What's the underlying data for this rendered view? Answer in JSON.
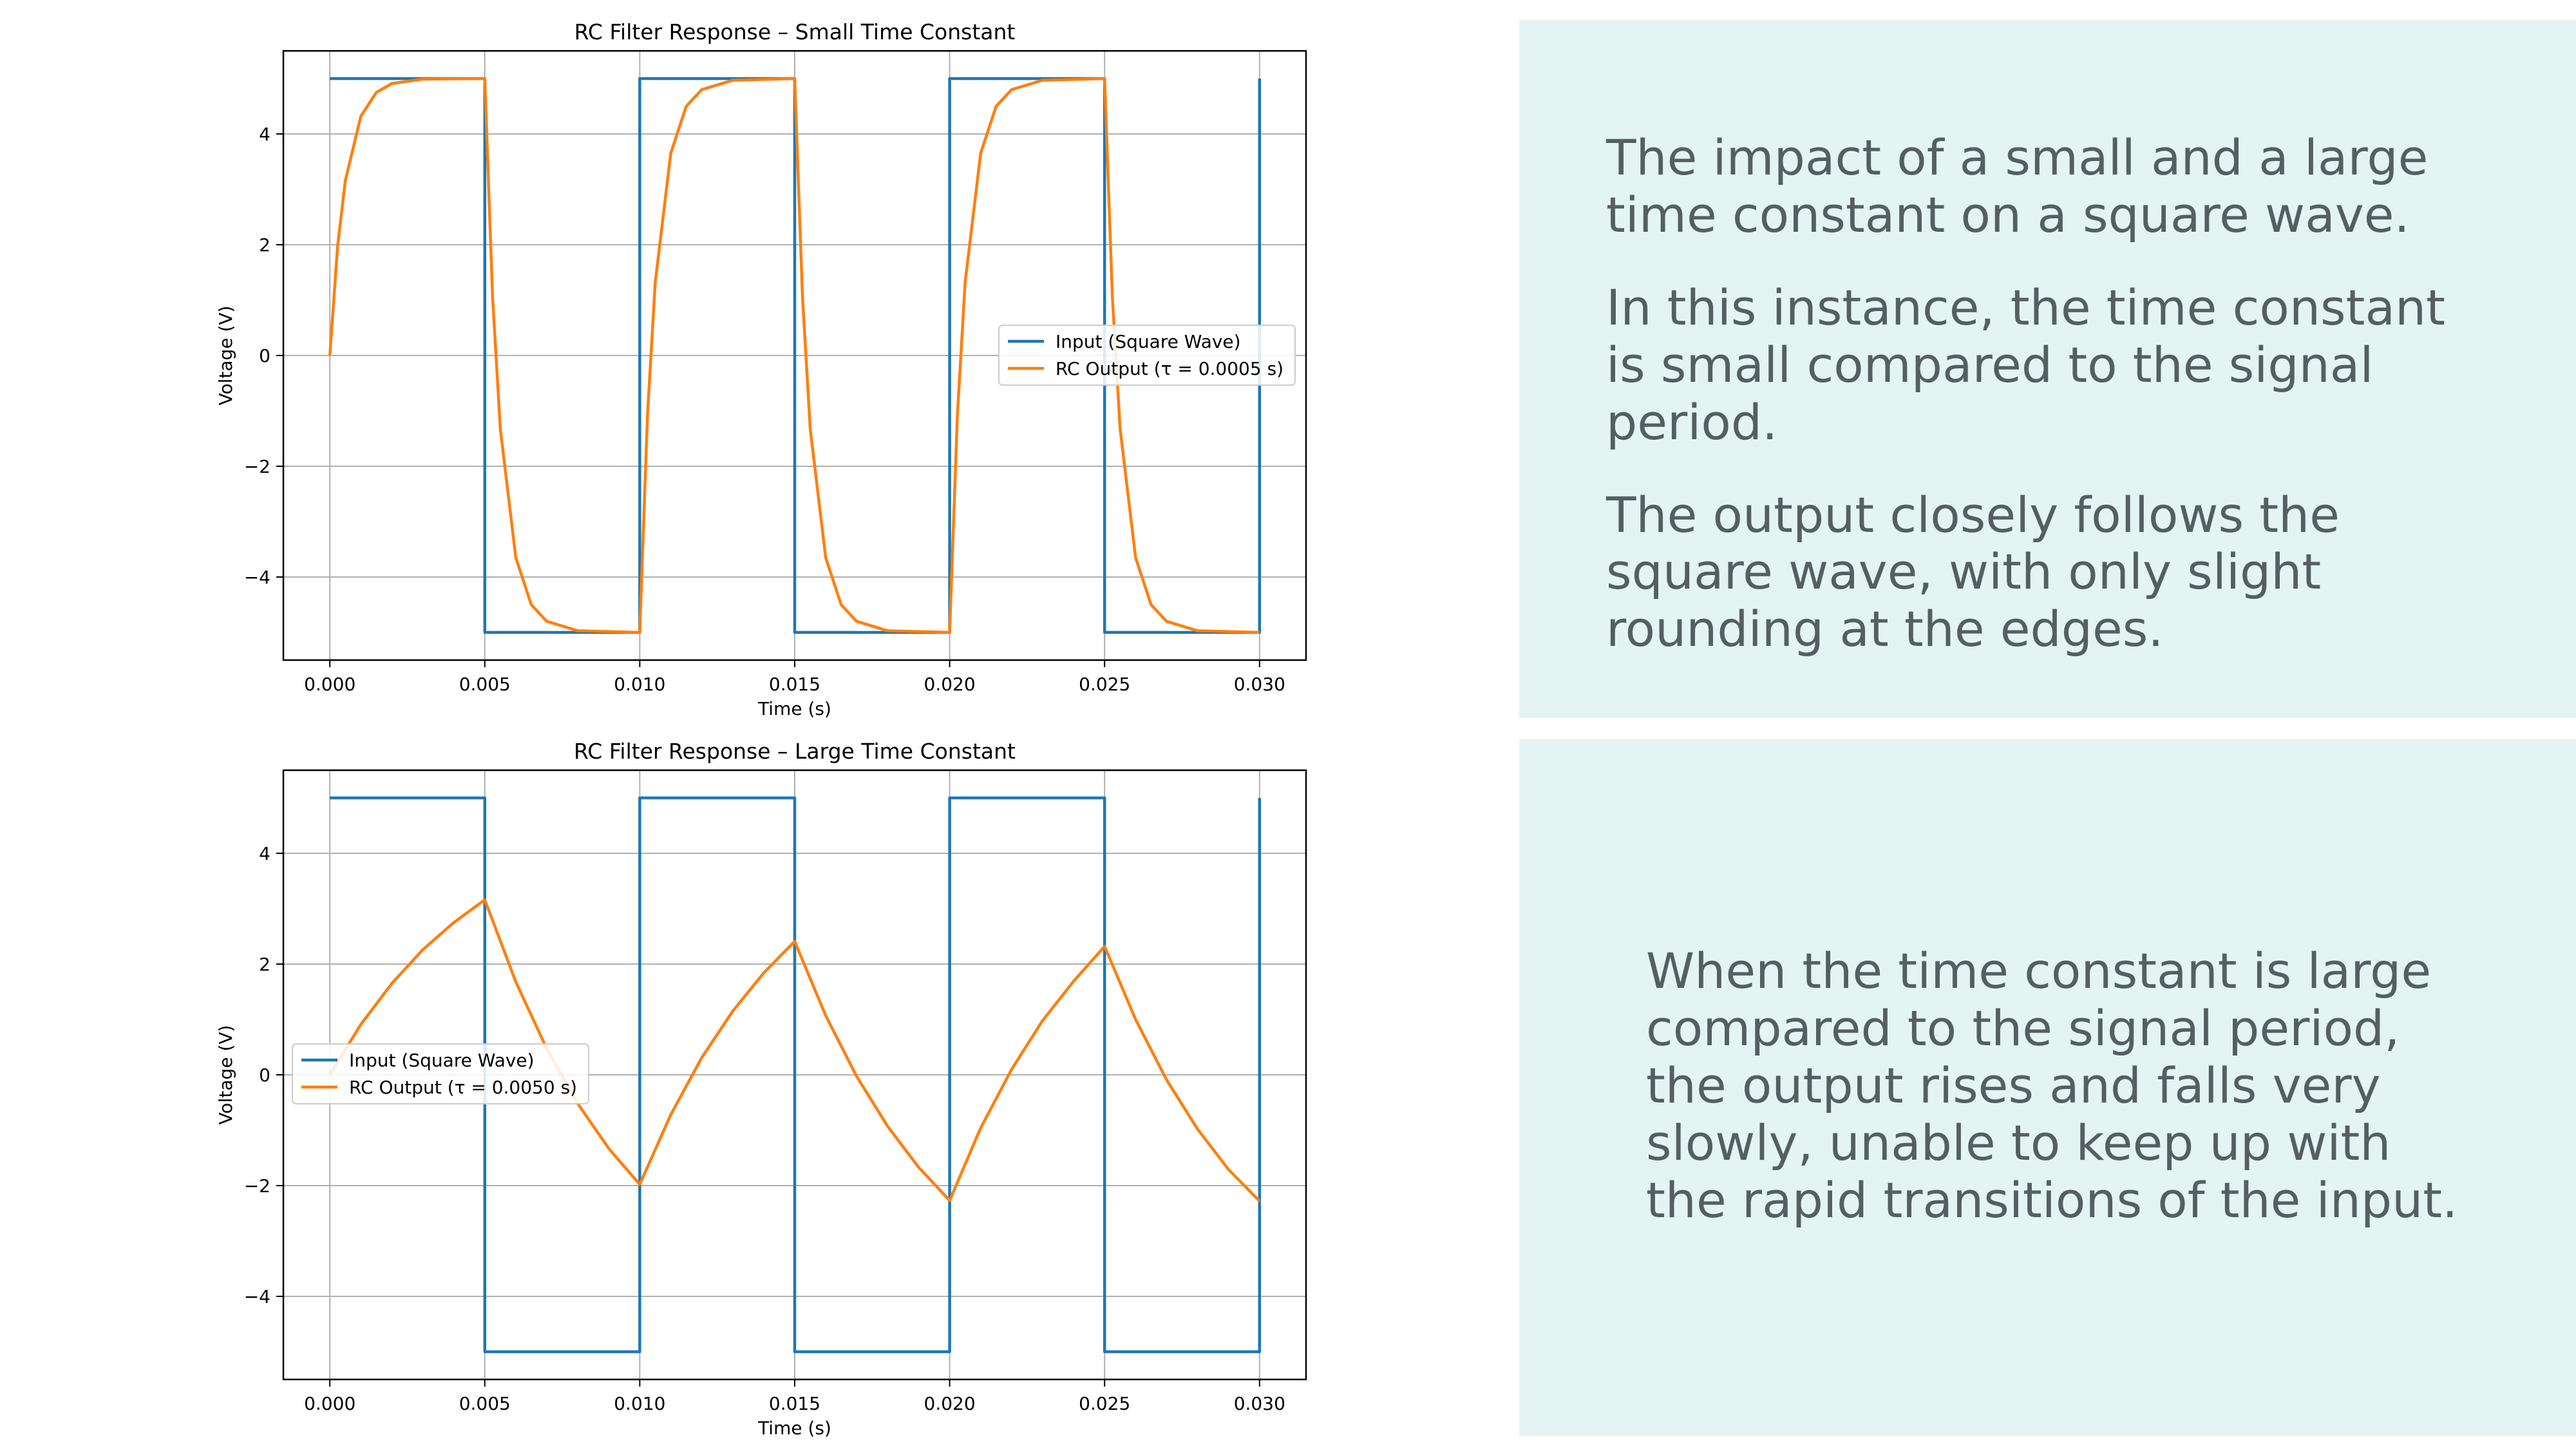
{
  "chart_data": [
    {
      "type": "line",
      "title": "RC Filter Response – Small Time Constant",
      "xlabel": "Time (s)",
      "ylabel": "Voltage (V)",
      "xlim": [
        -0.0015,
        0.0315
      ],
      "ylim": [
        -5.5,
        5.5
      ],
      "xticks": [
        0.0,
        0.005,
        0.01,
        0.015,
        0.02,
        0.025,
        0.03
      ],
      "xtick_labels": [
        "0.000",
        "0.005",
        "0.010",
        "0.015",
        "0.020",
        "0.025",
        "0.030"
      ],
      "yticks": [
        -4,
        -2,
        0,
        2,
        4
      ],
      "ytick_labels": [
        "−4",
        "−2",
        "0",
        "2",
        "4"
      ],
      "grid": true,
      "legend_position": "center-right",
      "series": [
        {
          "name": "Input (Square Wave)",
          "color": "#1f77b4",
          "x": [
            0,
            0.005,
            0.005,
            0.01,
            0.01,
            0.015,
            0.015,
            0.02,
            0.02,
            0.025,
            0.025,
            0.03,
            0.03
          ],
          "y": [
            5,
            5,
            -5,
            -5,
            5,
            5,
            -5,
            -5,
            5,
            5,
            -5,
            -5,
            5
          ]
        },
        {
          "name": "RC Output (τ = 0.0005 s)",
          "color": "#ff7f0e",
          "x": [
            0,
            0.00025,
            0.0005,
            0.001,
            0.0015,
            0.002,
            0.003,
            0.005,
            0.00525,
            0.0055,
            0.006,
            0.0065,
            0.007,
            0.008,
            0.01,
            0.01025,
            0.0105,
            0.011,
            0.0115,
            0.012,
            0.013,
            0.015,
            0.01525,
            0.0155,
            0.016,
            0.0165,
            0.017,
            0.018,
            0.02,
            0.02025,
            0.0205,
            0.021,
            0.0215,
            0.022,
            0.023,
            0.025,
            0.02525,
            0.0255,
            0.026,
            0.0265,
            0.027,
            0.028,
            0.03
          ],
          "y": [
            0,
            1.97,
            3.16,
            4.32,
            4.75,
            4.91,
            4.99,
            5.0,
            1.07,
            -1.32,
            -3.65,
            -4.5,
            -4.8,
            -4.97,
            -5.0,
            -1.07,
            1.32,
            3.65,
            4.5,
            4.8,
            4.97,
            5.0,
            1.07,
            -1.32,
            -3.65,
            -4.5,
            -4.8,
            -4.97,
            -5.0,
            -1.07,
            1.32,
            3.65,
            4.5,
            4.8,
            4.97,
            5.0,
            1.07,
            -1.32,
            -3.65,
            -4.5,
            -4.8,
            -4.97,
            -5.0
          ]
        }
      ]
    },
    {
      "type": "line",
      "title": "RC Filter Response – Large Time Constant",
      "xlabel": "Time (s)",
      "ylabel": "Voltage (V)",
      "xlim": [
        -0.0015,
        0.0315
      ],
      "ylim": [
        -5.5,
        5.5
      ],
      "xticks": [
        0.0,
        0.005,
        0.01,
        0.015,
        0.02,
        0.025,
        0.03
      ],
      "xtick_labels": [
        "0.000",
        "0.005",
        "0.010",
        "0.015",
        "0.020",
        "0.025",
        "0.030"
      ],
      "yticks": [
        -4,
        -2,
        0,
        2,
        4
      ],
      "ytick_labels": [
        "−4",
        "−2",
        "0",
        "2",
        "4"
      ],
      "grid": true,
      "legend_position": "center-left",
      "series": [
        {
          "name": "Input (Square Wave)",
          "color": "#1f77b4",
          "x": [
            0,
            0.005,
            0.005,
            0.01,
            0.01,
            0.015,
            0.015,
            0.02,
            0.02,
            0.025,
            0.025,
            0.03,
            0.03
          ],
          "y": [
            5,
            5,
            -5,
            -5,
            5,
            5,
            -5,
            -5,
            5,
            5,
            -5,
            -5,
            5
          ]
        },
        {
          "name": "RC Output (τ = 0.0050 s)",
          "color": "#ff7f0e",
          "x": [
            0,
            0.001,
            0.002,
            0.003,
            0.004,
            0.005,
            0.006,
            0.007,
            0.008,
            0.009,
            0.01,
            0.011,
            0.012,
            0.013,
            0.014,
            0.015,
            0.016,
            0.017,
            0.018,
            0.019,
            0.02,
            0.021,
            0.022,
            0.023,
            0.024,
            0.025,
            0.026,
            0.027,
            0.028,
            0.029,
            0.03
          ],
          "y": [
            0,
            0.91,
            1.65,
            2.26,
            2.75,
            3.16,
            1.68,
            0.47,
            -0.52,
            -1.33,
            -1.98,
            -0.72,
            0.31,
            1.15,
            1.84,
            2.41,
            1.07,
            -0.03,
            -0.93,
            -1.67,
            -2.27,
            -0.96,
            0.1,
            0.98,
            1.69,
            2.32,
            1.0,
            -0.09,
            -0.98,
            -1.71,
            -2.28
          ]
        }
      ]
    }
  ],
  "panels": {
    "top": [
      "The impact of a small and a large time constant on a square wave.",
      "In this instance, the time constant is small compared to the signal period.",
      "The output closely follows the square wave, with only slight rounding at the edges."
    ],
    "bottom": [
      "When the time constant is large compared to the signal period, the output rises and falls very slowly, unable to keep up with the rapid transitions of the input."
    ]
  }
}
